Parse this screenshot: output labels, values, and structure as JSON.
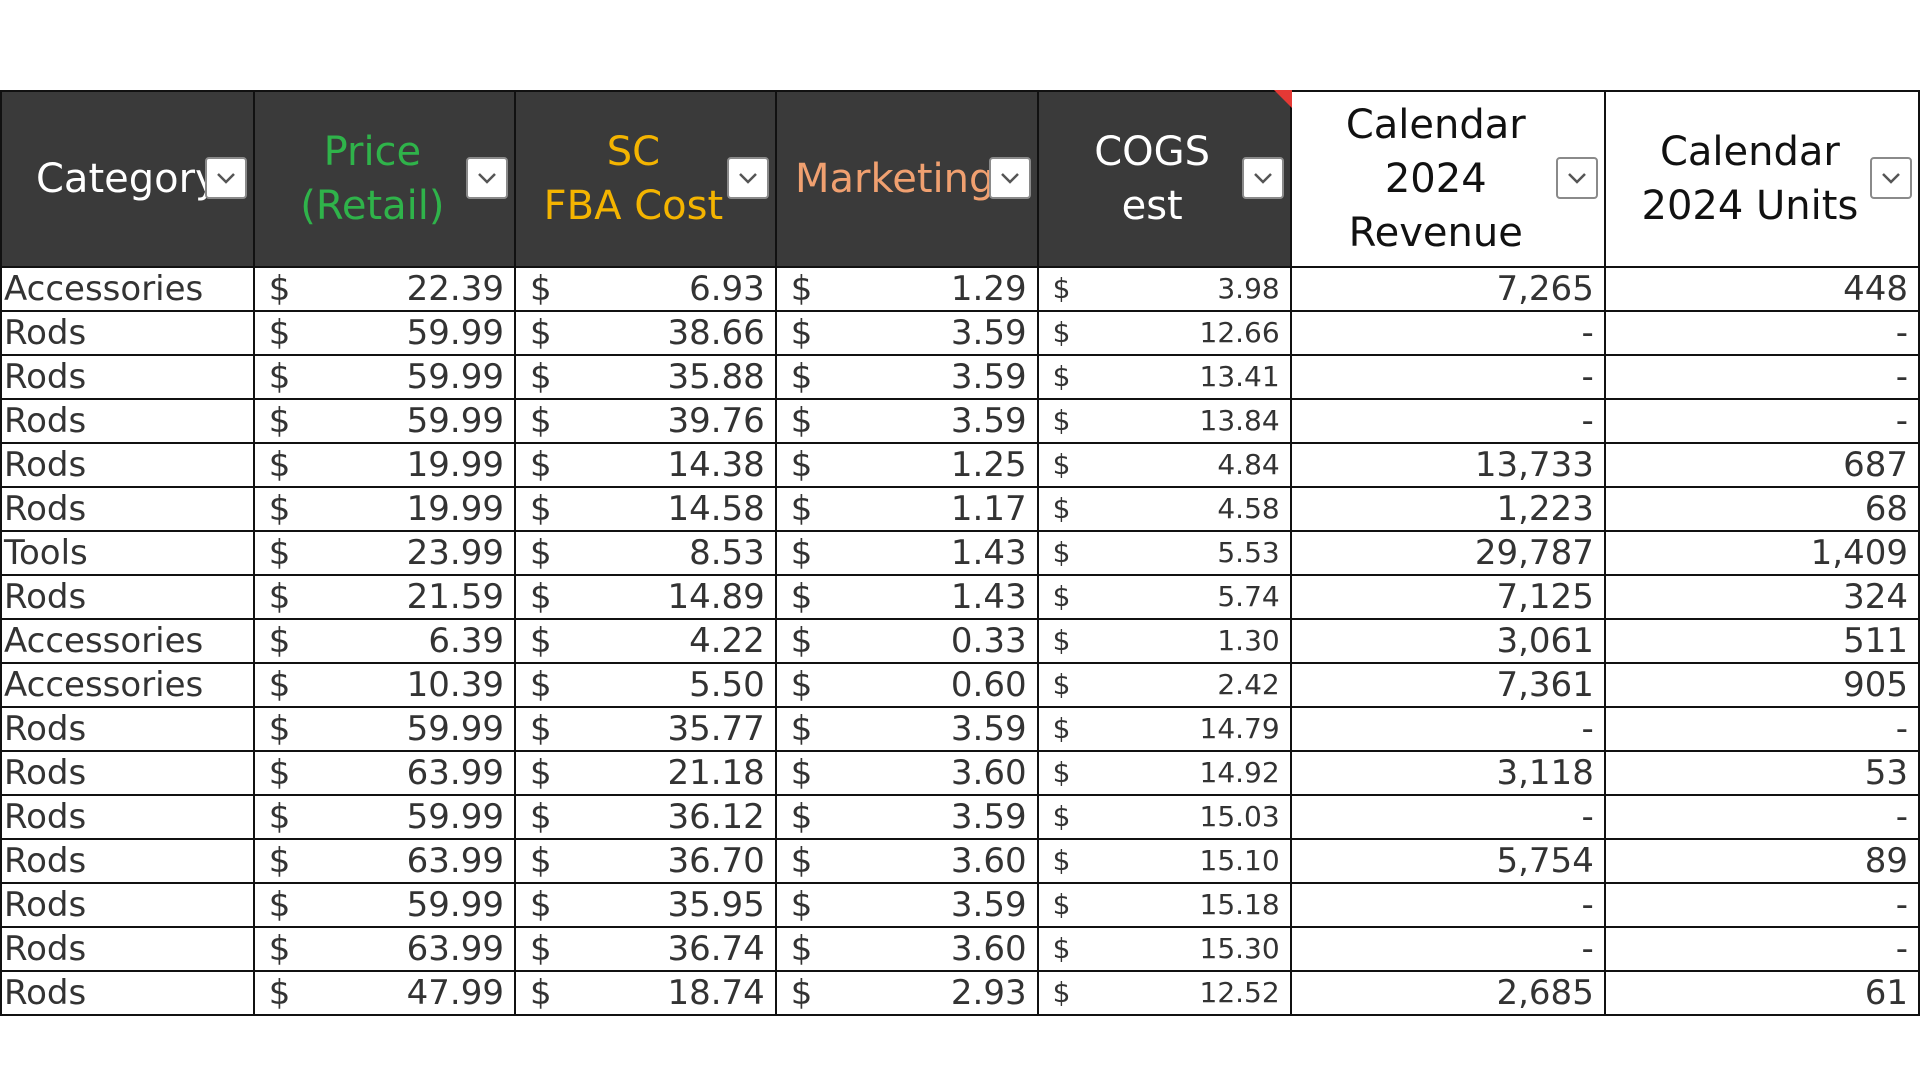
{
  "headers": [
    {
      "label": "Category",
      "color": "#ffffff"
    },
    {
      "label": "Price\n(Retail)",
      "line1": "Price",
      "line2": "(Retail)",
      "color": "#2fb34a"
    },
    {
      "label": "SC\nFBA Cost",
      "line1": "SC",
      "line2": "FBA Cost",
      "color": "#f4b400"
    },
    {
      "label": "Marketing",
      "color": "#f0a070"
    },
    {
      "label": "COGS\nest",
      "line1": "COGS",
      "line2": "est",
      "color": "#ffffff"
    },
    {
      "label": "Calendar\n2024 Revenue",
      "line1": "Calendar",
      "line2": "2024 Revenue",
      "color": "#111111"
    },
    {
      "label": "Calendar\n2024 Units",
      "line1": "Calendar",
      "line2": "2024 Units",
      "color": "#111111"
    }
  ],
  "currency_symbol": "$",
  "rows": [
    {
      "category": "Accessories",
      "price": "22.39",
      "fba_cost": "6.93",
      "marketing": "1.29",
      "cogs": "3.98",
      "revenue": "7,265",
      "units": "448"
    },
    {
      "category": "Rods",
      "price": "59.99",
      "fba_cost": "38.66",
      "marketing": "3.59",
      "cogs": "12.66",
      "revenue": "-",
      "units": "-"
    },
    {
      "category": "Rods",
      "price": "59.99",
      "fba_cost": "35.88",
      "marketing": "3.59",
      "cogs": "13.41",
      "revenue": "-",
      "units": "-"
    },
    {
      "category": "Rods",
      "price": "59.99",
      "fba_cost": "39.76",
      "marketing": "3.59",
      "cogs": "13.84",
      "revenue": "-",
      "units": "-"
    },
    {
      "category": "Rods",
      "price": "19.99",
      "fba_cost": "14.38",
      "marketing": "1.25",
      "cogs": "4.84",
      "revenue": "13,733",
      "units": "687"
    },
    {
      "category": "Rods",
      "price": "19.99",
      "fba_cost": "14.58",
      "marketing": "1.17",
      "cogs": "4.58",
      "revenue": "1,223",
      "units": "68"
    },
    {
      "category": "Tools",
      "price": "23.99",
      "fba_cost": "8.53",
      "marketing": "1.43",
      "cogs": "5.53",
      "revenue": "29,787",
      "units": "1,409"
    },
    {
      "category": "Rods",
      "price": "21.59",
      "fba_cost": "14.89",
      "marketing": "1.43",
      "cogs": "5.74",
      "revenue": "7,125",
      "units": "324"
    },
    {
      "category": "Accessories",
      "price": "6.39",
      "fba_cost": "4.22",
      "marketing": "0.33",
      "cogs": "1.30",
      "revenue": "3,061",
      "units": "511"
    },
    {
      "category": "Accessories",
      "price": "10.39",
      "fba_cost": "5.50",
      "marketing": "0.60",
      "cogs": "2.42",
      "revenue": "7,361",
      "units": "905"
    },
    {
      "category": "Rods",
      "price": "59.99",
      "fba_cost": "35.77",
      "marketing": "3.59",
      "cogs": "14.79",
      "revenue": "-",
      "units": "-"
    },
    {
      "category": "Rods",
      "price": "63.99",
      "fba_cost": "21.18",
      "marketing": "3.60",
      "cogs": "14.92",
      "revenue": "3,118",
      "units": "53"
    },
    {
      "category": "Rods",
      "price": "59.99",
      "fba_cost": "36.12",
      "marketing": "3.59",
      "cogs": "15.03",
      "revenue": "-",
      "units": "-"
    },
    {
      "category": "Rods",
      "price": "63.99",
      "fba_cost": "36.70",
      "marketing": "3.60",
      "cogs": "15.10",
      "revenue": "5,754",
      "units": "89"
    },
    {
      "category": "Rods",
      "price": "59.99",
      "fba_cost": "35.95",
      "marketing": "3.59",
      "cogs": "15.18",
      "revenue": "-",
      "units": "-"
    },
    {
      "category": "Rods",
      "price": "63.99",
      "fba_cost": "36.74",
      "marketing": "3.60",
      "cogs": "15.30",
      "revenue": "-",
      "units": "-"
    },
    {
      "category": "Rods",
      "price": "47.99",
      "fba_cost": "18.74",
      "marketing": "2.93",
      "cogs": "12.52",
      "revenue": "2,685",
      "units": "61"
    }
  ],
  "colors": {
    "header_dark_bg": "#3a3a3a",
    "grid_line": "#111111",
    "note_indicator": "#e53935"
  },
  "icons": {
    "filter": "chevron-down-icon",
    "note": "note-corner-icon"
  }
}
